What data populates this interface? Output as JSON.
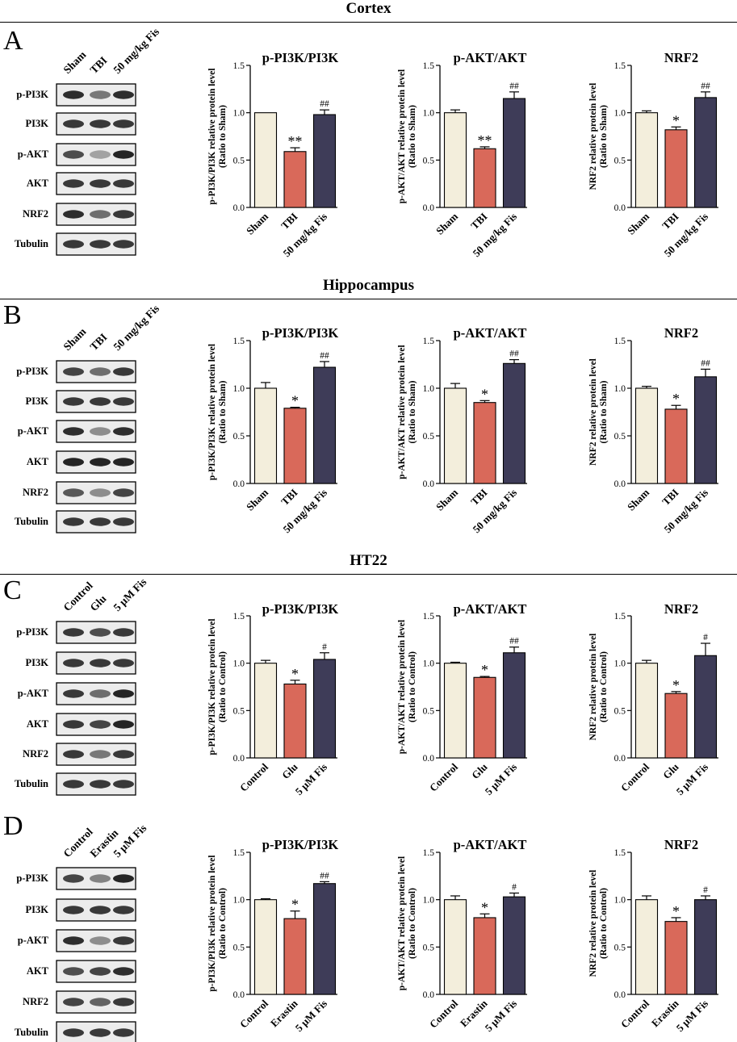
{
  "colors": {
    "control": "#f3eedc",
    "model": "#d9695a",
    "treatment": "#3e3c58"
  },
  "sections": [
    {
      "title": "Cortex"
    },
    {
      "title": "Hippocampus"
    },
    {
      "title": "HT22"
    }
  ],
  "blot_bands": [
    "p-PI3K",
    "PI3K",
    "p-AKT",
    "AKT",
    "NRF2",
    "Tubulin"
  ],
  "panels": [
    {
      "letter": "A",
      "lanes": [
        "Sham",
        "TBI",
        "50 mg/kg Fis"
      ]
    },
    {
      "letter": "B",
      "lanes": [
        "Sham",
        "TBI",
        "50 mg/kg Fis"
      ]
    },
    {
      "letter": "C",
      "lanes": [
        "Control",
        "Glu",
        "5 μM Fis"
      ]
    },
    {
      "letter": "D",
      "lanes": [
        "Control",
        "Erastin",
        "5 μM Fis"
      ]
    }
  ],
  "chart_data": [
    {
      "panel": "A",
      "type": "bar",
      "title": "p-PI3K/PI3K",
      "ylabel": [
        "p-PI3K/PI3K relative protein level",
        "(Ratio to Sham)"
      ],
      "categories": [
        "Sham",
        "TBI",
        "50 mg/kg Fis"
      ],
      "values": [
        1.0,
        0.59,
        0.98
      ],
      "errors": [
        0.0,
        0.04,
        0.05
      ],
      "annotations": [
        "",
        "**",
        "##"
      ],
      "ylim": [
        0,
        1.5
      ],
      "yticks": [
        "0.0",
        "0.5",
        "1.0",
        "1.5"
      ]
    },
    {
      "panel": "A",
      "type": "bar",
      "title": "p-AKT/AKT",
      "ylabel": [
        "p-AKT/AKT relative protein level",
        "(Ratio to Sham)"
      ],
      "categories": [
        "Sham",
        "TBI",
        "50 mg/kg Fis"
      ],
      "values": [
        1.0,
        0.62,
        1.15
      ],
      "errors": [
        0.03,
        0.02,
        0.07
      ],
      "annotations": [
        "",
        "**",
        "##"
      ],
      "ylim": [
        0,
        1.5
      ],
      "yticks": [
        "0.0",
        "0.5",
        "1.0",
        "1.5"
      ]
    },
    {
      "panel": "A",
      "type": "bar",
      "title": "NRF2",
      "ylabel": [
        "NRF2 relative protein level",
        "(Ratio to Sham)"
      ],
      "categories": [
        "Sham",
        "TBI",
        "50 mg/kg Fis"
      ],
      "values": [
        1.0,
        0.82,
        1.16
      ],
      "errors": [
        0.02,
        0.03,
        0.06
      ],
      "annotations": [
        "",
        "*",
        "##"
      ],
      "ylim": [
        0,
        1.5
      ],
      "yticks": [
        "0.0",
        "0.5",
        "1.0",
        "1.5"
      ]
    },
    {
      "panel": "B",
      "type": "bar",
      "title": "p-PI3K/PI3K",
      "ylabel": [
        "p-PI3K/PI3K relative protein level",
        "(Ratio to Sham)"
      ],
      "categories": [
        "Sham",
        "TBI",
        "50 mg/kg Fis"
      ],
      "values": [
        1.0,
        0.79,
        1.22
      ],
      "errors": [
        0.06,
        0.01,
        0.06
      ],
      "annotations": [
        "",
        "*",
        "##"
      ],
      "ylim": [
        0,
        1.5
      ],
      "yticks": [
        "0.0",
        "0.5",
        "1.0",
        "1.5"
      ]
    },
    {
      "panel": "B",
      "type": "bar",
      "title": "p-AKT/AKT",
      "ylabel": [
        "p-AKT/AKT relative protein level",
        "(Ratio to Sham)"
      ],
      "categories": [
        "Sham",
        "TBI",
        "50 mg/kg Fis"
      ],
      "values": [
        1.0,
        0.85,
        1.26
      ],
      "errors": [
        0.05,
        0.02,
        0.04
      ],
      "annotations": [
        "",
        "*",
        "##"
      ],
      "ylim": [
        0,
        1.5
      ],
      "yticks": [
        "0.0",
        "0.5",
        "1.0",
        "1.5"
      ]
    },
    {
      "panel": "B",
      "type": "bar",
      "title": "NRF2",
      "ylabel": [
        "NRF2 relative protein level",
        "(Ratio to Sham)"
      ],
      "categories": [
        "Sham",
        "TBI",
        "50 mg/kg Fis"
      ],
      "values": [
        1.0,
        0.78,
        1.12
      ],
      "errors": [
        0.02,
        0.04,
        0.08
      ],
      "annotations": [
        "",
        "*",
        "##"
      ],
      "ylim": [
        0,
        1.5
      ],
      "yticks": [
        "0.0",
        "0.5",
        "1.0",
        "1.5"
      ]
    },
    {
      "panel": "C",
      "type": "bar",
      "title": "p-PI3K/PI3K",
      "ylabel": [
        "p-PI3K/PI3K relative protein level",
        "(Ratio to Control)"
      ],
      "categories": [
        "Control",
        "Glu",
        "5 μM Fis"
      ],
      "values": [
        1.0,
        0.78,
        1.04
      ],
      "errors": [
        0.03,
        0.04,
        0.07
      ],
      "annotations": [
        "",
        "*",
        "#"
      ],
      "ylim": [
        0,
        1.5
      ],
      "yticks": [
        "0.0",
        "0.5",
        "1.0",
        "1.5"
      ]
    },
    {
      "panel": "C",
      "type": "bar",
      "title": "p-AKT/AKT",
      "ylabel": [
        "p-AKT/AKT relative protein level",
        "(Ratio to Control)"
      ],
      "categories": [
        "Control",
        "Glu",
        "5 μM Fis"
      ],
      "values": [
        1.0,
        0.85,
        1.11
      ],
      "errors": [
        0.01,
        0.01,
        0.06
      ],
      "annotations": [
        "",
        "*",
        "##"
      ],
      "ylim": [
        0,
        1.5
      ],
      "yticks": [
        "0.0",
        "0.5",
        "1.0",
        "1.5"
      ]
    },
    {
      "panel": "C",
      "type": "bar",
      "title": "NRF2",
      "ylabel": [
        "NRF2 relative protein level",
        "(Ratio to Control)"
      ],
      "categories": [
        "Control",
        "Glu",
        "5 μM Fis"
      ],
      "values": [
        1.0,
        0.68,
        1.08
      ],
      "errors": [
        0.03,
        0.02,
        0.13
      ],
      "annotations": [
        "",
        "*",
        "#"
      ],
      "ylim": [
        0,
        1.5
      ],
      "yticks": [
        "0.0",
        "0.5",
        "1.0",
        "1.5"
      ]
    },
    {
      "panel": "D",
      "type": "bar",
      "title": "p-PI3K/PI3K",
      "ylabel": [
        "p-PI3K/PI3K relative protein level",
        "(Ratio to Control)"
      ],
      "categories": [
        "Control",
        "Erastin",
        "5 μM Fis"
      ],
      "values": [
        1.0,
        0.8,
        1.17
      ],
      "errors": [
        0.01,
        0.08,
        0.02
      ],
      "annotations": [
        "",
        "*",
        "##"
      ],
      "ylim": [
        0,
        1.5
      ],
      "yticks": [
        "0.0",
        "0.5",
        "1.0",
        "1.5"
      ]
    },
    {
      "panel": "D",
      "type": "bar",
      "title": "p-AKT/AKT",
      "ylabel": [
        "p-AKT/AKT relative protein level",
        "(Ratio to Control)"
      ],
      "categories": [
        "Control",
        "Erastin",
        "5 μM Fis"
      ],
      "values": [
        1.0,
        0.81,
        1.03
      ],
      "errors": [
        0.04,
        0.04,
        0.04
      ],
      "annotations": [
        "",
        "*",
        "#"
      ],
      "ylim": [
        0,
        1.5
      ],
      "yticks": [
        "0.0",
        "0.5",
        "1.0",
        "1.5"
      ]
    },
    {
      "panel": "D",
      "type": "bar",
      "title": "NRF2",
      "ylabel": [
        "NRF2 relative protein level",
        "(Ratio to Control)"
      ],
      "categories": [
        "Control",
        "Erastin",
        "5 μM Fis"
      ],
      "values": [
        1.0,
        0.77,
        1.0
      ],
      "errors": [
        0.04,
        0.04,
        0.04
      ],
      "annotations": [
        "",
        "*",
        "#"
      ],
      "ylim": [
        0,
        1.5
      ],
      "yticks": [
        "0.0",
        "0.5",
        "1.0",
        "1.5"
      ]
    }
  ]
}
